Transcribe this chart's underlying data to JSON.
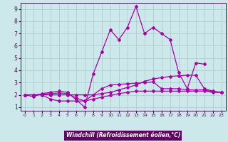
{
  "xlabel": "Windchill (Refroidissement éolien,°C)",
  "background_color": "#cce8ea",
  "grid_color": "#aac8cc",
  "line_color": "#aa00aa",
  "x": [
    0,
    1,
    2,
    3,
    4,
    5,
    6,
    7,
    8,
    9,
    10,
    11,
    12,
    13,
    14,
    15,
    16,
    17,
    18,
    19,
    20,
    21,
    22,
    23
  ],
  "y_main": [
    2.0,
    1.85,
    2.1,
    2.2,
    2.3,
    2.2,
    1.6,
    1.0,
    3.7,
    5.5,
    7.3,
    6.5,
    7.5,
    9.2,
    7.0,
    7.5,
    7.0,
    6.5,
    3.8,
    2.5,
    4.6,
    4.5,
    null,
    null
  ],
  "y_line2": [
    2.0,
    2.0,
    2.0,
    2.0,
    2.0,
    2.0,
    2.0,
    2.0,
    2.0,
    2.1,
    2.2,
    2.4,
    2.6,
    2.8,
    3.1,
    3.3,
    3.4,
    3.5,
    3.55,
    3.6,
    3.6,
    2.5,
    2.3,
    2.2
  ],
  "y_line3": [
    2.0,
    2.0,
    2.05,
    2.1,
    2.15,
    2.1,
    1.75,
    1.5,
    2.0,
    2.5,
    2.8,
    2.85,
    2.9,
    2.95,
    3.0,
    3.05,
    2.5,
    2.5,
    2.5,
    2.4,
    2.4,
    2.4,
    2.25,
    2.2
  ],
  "y_line4": [
    2.0,
    2.0,
    2.0,
    1.65,
    1.5,
    1.5,
    1.5,
    1.5,
    1.65,
    1.8,
    1.95,
    2.1,
    2.2,
    2.3,
    2.3,
    2.3,
    2.3,
    2.3,
    2.3,
    2.3,
    2.3,
    2.3,
    2.2,
    2.2
  ],
  "ylim": [
    0.7,
    9.5
  ],
  "yticks": [
    1,
    2,
    3,
    4,
    5,
    6,
    7,
    8,
    9
  ],
  "xticks": [
    0,
    1,
    2,
    3,
    4,
    5,
    6,
    7,
    8,
    9,
    10,
    11,
    12,
    13,
    14,
    15,
    16,
    17,
    18,
    19,
    20,
    21,
    22,
    23
  ],
  "xlabel_bg": "#660066",
  "xlabel_fg": "#ffffff"
}
